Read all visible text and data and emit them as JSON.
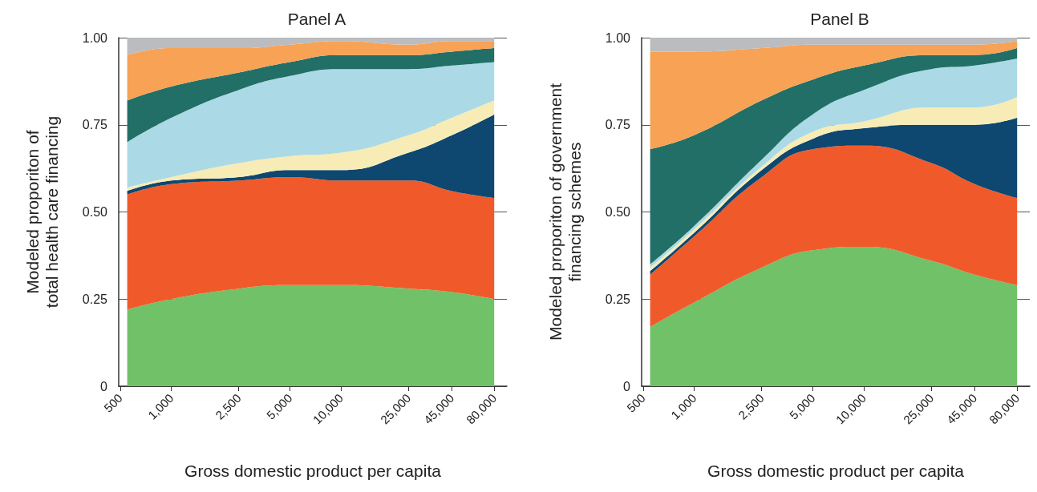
{
  "chart_data": [
    {
      "type": "area",
      "title": "Panel A",
      "xlabel": "Gross domestic product per capita",
      "ylabel": "Modeled proporiton of\ntotal health care financing",
      "stacked": true,
      "log": "x",
      "grid": "y",
      "x": [
        550,
        1000,
        2500,
        5000,
        10000,
        25000,
        45000,
        80000
      ],
      "xlim": [
        490,
        95000
      ],
      "xticks": [
        500,
        {
          "value": 1000,
          "label": "1,000"
        },
        {
          "value": 2500,
          "label": "2,500"
        },
        {
          "value": 5000,
          "label": "5,000"
        },
        {
          "value": 10000,
          "label": "10,000"
        },
        {
          "value": 25000,
          "label": "25,000"
        },
        {
          "value": 45000,
          "label": "45,000"
        },
        {
          "value": 80000,
          "label": "80,000"
        }
      ],
      "ylim": [
        0,
        1
      ],
      "yticks": [
        0,
        {
          "value": 0.25,
          "label": "0.25"
        },
        {
          "value": 0.5,
          "label": "0.50"
        },
        {
          "value": 0.75,
          "label": "0.75"
        },
        {
          "value": 1,
          "label": "1.00"
        }
      ],
      "series": [
        {
          "color": "#70c167",
          "values": [
            0.22,
            0.25,
            0.28,
            0.29,
            0.29,
            0.28,
            0.27,
            0.25
          ]
        },
        {
          "color": "#f05a2a",
          "values": [
            0.33,
            0.33,
            0.31,
            0.31,
            0.3,
            0.31,
            0.29,
            0.29
          ]
        },
        {
          "color": "#0e4770",
          "values": [
            0.01,
            0.01,
            0.01,
            0.02,
            0.03,
            0.08,
            0.16,
            0.24
          ]
        },
        {
          "color": "#f7ecb5",
          "values": [
            0.01,
            0.01,
            0.04,
            0.04,
            0.05,
            0.05,
            0.05,
            0.04
          ]
        },
        {
          "color": "#acd9e6",
          "values": [
            0.13,
            0.17,
            0.21,
            0.23,
            0.24,
            0.19,
            0.15,
            0.11
          ]
        },
        {
          "color": "#216f66",
          "values": [
            0.12,
            0.09,
            0.05,
            0.04,
            0.04,
            0.04,
            0.04,
            0.04
          ]
        },
        {
          "color": "#f7a254",
          "values": [
            0.13,
            0.11,
            0.07,
            0.05,
            0.04,
            0.03,
            0.03,
            0.02
          ]
        },
        {
          "color": "#bbbcbf",
          "values": [
            0.05,
            0.03,
            0.03,
            0.02,
            0.01,
            0.02,
            0.01,
            0.01
          ]
        }
      ]
    },
    {
      "type": "area",
      "title": "Panel B",
      "xlabel": "Gross domestic product per capita",
      "ylabel": "Modeled proporiton of government\nfinancing schemes",
      "stacked": true,
      "log": "x",
      "grid": "y",
      "x": [
        550,
        1000,
        2500,
        5000,
        10000,
        25000,
        45000,
        80000
      ],
      "xlim": [
        490,
        95000
      ],
      "xticks": [
        500,
        {
          "value": 1000,
          "label": "1,000"
        },
        {
          "value": 2500,
          "label": "2,500"
        },
        {
          "value": 5000,
          "label": "5,000"
        },
        {
          "value": 10000,
          "label": "10,000"
        },
        {
          "value": 25000,
          "label": "25,000"
        },
        {
          "value": 45000,
          "label": "45,000"
        },
        {
          "value": 80000,
          "label": "80,000"
        }
      ],
      "ylim": [
        0,
        1
      ],
      "yticks": [
        0,
        {
          "value": 0.25,
          "label": "0.25"
        },
        {
          "value": 0.5,
          "label": "0.50"
        },
        {
          "value": 0.75,
          "label": "0.75"
        },
        {
          "value": 1,
          "label": "1.00"
        }
      ],
      "series": [
        {
          "color": "#70c167",
          "values": [
            0.17,
            0.24,
            0.34,
            0.39,
            0.4,
            0.36,
            0.32,
            0.29
          ]
        },
        {
          "color": "#f05a2a",
          "values": [
            0.15,
            0.19,
            0.26,
            0.29,
            0.29,
            0.28,
            0.26,
            0.25
          ]
        },
        {
          "color": "#0e4770",
          "values": [
            0.01,
            0.01,
            0.02,
            0.03,
            0.05,
            0.11,
            0.17,
            0.23
          ]
        },
        {
          "color": "#f7ecb5",
          "values": [
            0.01,
            0.01,
            0.01,
            0.02,
            0.02,
            0.05,
            0.05,
            0.06
          ]
        },
        {
          "color": "#acd9e6",
          "values": [
            0.01,
            0.01,
            0.02,
            0.05,
            0.09,
            0.11,
            0.12,
            0.11
          ]
        },
        {
          "color": "#216f66",
          "values": [
            0.33,
            0.26,
            0.17,
            0.1,
            0.07,
            0.04,
            0.03,
            0.03
          ]
        },
        {
          "color": "#f7a254",
          "values": [
            0.28,
            0.24,
            0.15,
            0.1,
            0.06,
            0.03,
            0.03,
            0.02
          ]
        },
        {
          "color": "#bbbcbf",
          "values": [
            0.04,
            0.04,
            0.03,
            0.02,
            0.02,
            0.02,
            0.02,
            0.01
          ]
        }
      ]
    }
  ]
}
